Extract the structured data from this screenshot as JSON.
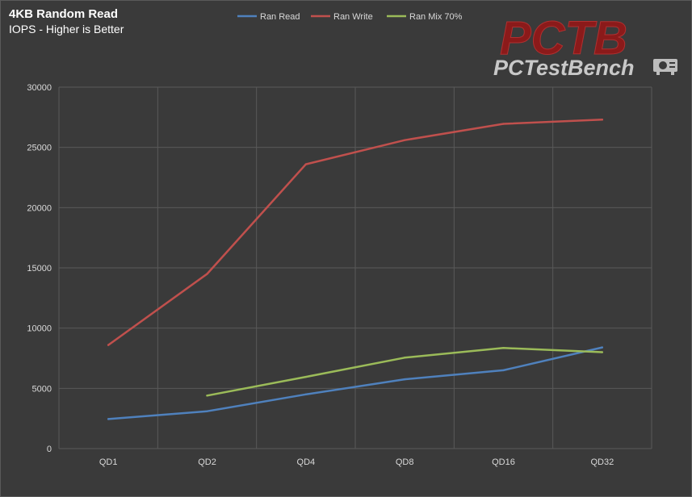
{
  "chart_data": {
    "type": "line",
    "title": "4KB Random Read",
    "subtitle": "IOPS - Higher is Better",
    "categories": [
      "QD1",
      "QD2",
      "QD4",
      "QD8",
      "QD16",
      "QD32"
    ],
    "ylim": [
      0,
      30000
    ],
    "yticks": [
      0,
      5000,
      10000,
      15000,
      20000,
      25000,
      30000
    ],
    "grid": true,
    "legend_position": "top",
    "series": [
      {
        "name": "Ran Read",
        "color": "#4f81bd",
        "values": [
          2450,
          3100,
          4500,
          5750,
          6500,
          8400
        ]
      },
      {
        "name": "Ran Write",
        "color": "#c0504d",
        "values": [
          8600,
          14500,
          23600,
          25600,
          26950,
          27300
        ]
      },
      {
        "name": "Ran Mix 70%",
        "color": "#9bbb59",
        "values": [
          null,
          4400,
          5950,
          7550,
          8350,
          8000
        ]
      }
    ]
  },
  "logo": {
    "mark_text": "PCTB",
    "brand_text": "PCTestBench",
    "mark_color": "#8b1a1a",
    "brand_color": "#c8c8c8"
  }
}
